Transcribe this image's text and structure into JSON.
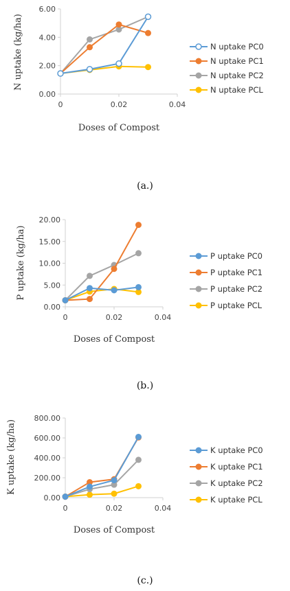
{
  "chart_data": [
    {
      "type": "line",
      "title": "",
      "xlabel": "Doses of Compost",
      "ylabel": "N uptake (kg/ha)",
      "xlim": [
        0,
        0.04
      ],
      "ylim": [
        0,
        6
      ],
      "x_ticks": [
        "0",
        "0.02",
        "0.04"
      ],
      "y_ticks": [
        "0.00",
        "2.00",
        "4.00",
        "6.00"
      ],
      "legend_position": "right",
      "grid": false,
      "caption": "(a.)",
      "x": [
        0,
        0.01,
        0.02,
        0.03
      ],
      "series": [
        {
          "name": "N uptake PC0",
          "color": "#5b9bd5",
          "marker": "open",
          "values": [
            1.45,
            1.75,
            2.15,
            5.45
          ]
        },
        {
          "name": "N uptake PC1",
          "color": "#ed7d31",
          "marker": "filled",
          "values": [
            1.45,
            3.3,
            4.9,
            4.3
          ]
        },
        {
          "name": "N uptake PC2",
          "color": "#a5a5a5",
          "marker": "filled",
          "values": [
            1.45,
            3.85,
            4.55,
            5.45
          ]
        },
        {
          "name": "N uptake PCL",
          "color": "#ffc000",
          "marker": "filled",
          "values": [
            1.45,
            1.7,
            1.95,
            1.9
          ]
        }
      ]
    },
    {
      "type": "line",
      "title": "",
      "xlabel": "Doses of Compost",
      "ylabel": "P uptake (kg/ha)",
      "xlim": [
        0,
        0.04
      ],
      "ylim": [
        0,
        20
      ],
      "x_ticks": [
        "0",
        "0.02",
        "0.04"
      ],
      "y_ticks": [
        "0.00",
        "5.00",
        "10.00",
        "15.00",
        "20.00"
      ],
      "legend_position": "right",
      "grid": false,
      "caption": "(b.)",
      "x": [
        0,
        0.01,
        0.02,
        0.03
      ],
      "series": [
        {
          "name": "P uptake PC0",
          "color": "#5b9bd5",
          "marker": "filled",
          "values": [
            1.5,
            4.3,
            3.8,
            4.5
          ]
        },
        {
          "name": "P uptake PC1",
          "color": "#ed7d31",
          "marker": "filled",
          "values": [
            1.5,
            1.8,
            8.7,
            18.8
          ]
        },
        {
          "name": "P uptake PC2",
          "color": "#a5a5a5",
          "marker": "filled",
          "values": [
            1.5,
            7.1,
            9.6,
            12.3
          ]
        },
        {
          "name": "P uptake PCL",
          "color": "#ffc000",
          "marker": "filled",
          "values": [
            1.5,
            3.5,
            4.1,
            3.4
          ]
        }
      ]
    },
    {
      "type": "line",
      "title": "",
      "xlabel": "Doses of Compost",
      "ylabel": "K uptake (kg/ha)",
      "xlim": [
        0,
        0.04
      ],
      "ylim": [
        0,
        800
      ],
      "x_ticks": [
        "0",
        "0.02",
        "0.04"
      ],
      "y_ticks": [
        "0.00",
        "200.00",
        "400.00",
        "600.00",
        "800.00"
      ],
      "legend_position": "right",
      "grid": false,
      "caption": "(c.)",
      "x": [
        0,
        0.01,
        0.02,
        0.03
      ],
      "series": [
        {
          "name": "K uptake PC0",
          "color": "#5b9bd5",
          "marker": "filled",
          "values": [
            10,
            110,
            175,
            610
          ]
        },
        {
          "name": "K uptake PC1",
          "color": "#ed7d31",
          "marker": "filled",
          "values": [
            10,
            155,
            185,
            605
          ]
        },
        {
          "name": "K uptake PC2",
          "color": "#a5a5a5",
          "marker": "filled",
          "values": [
            10,
            85,
            130,
            380
          ]
        },
        {
          "name": "K uptake PCL",
          "color": "#ffc000",
          "marker": "filled",
          "values": [
            10,
            30,
            40,
            115
          ]
        }
      ]
    }
  ]
}
